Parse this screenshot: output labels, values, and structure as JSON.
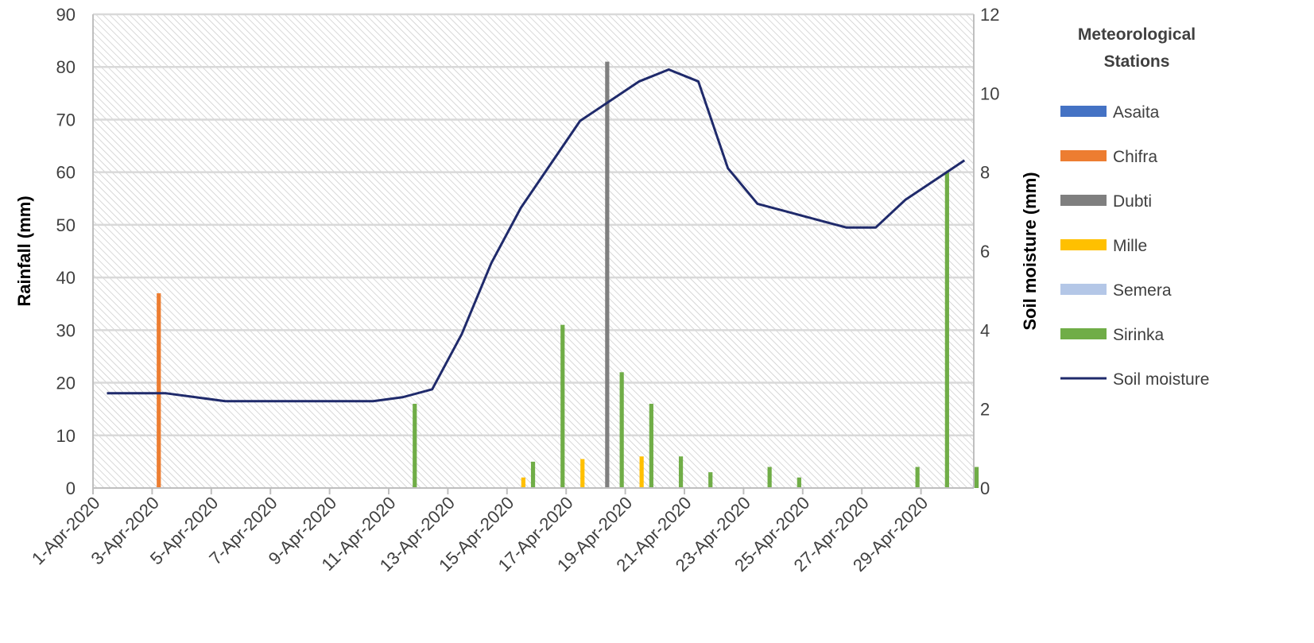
{
  "chart_data": {
    "type": "bar",
    "x_dates": [
      "1-Apr-2020",
      "2-Apr-2020",
      "3-Apr-2020",
      "4-Apr-2020",
      "5-Apr-2020",
      "6-Apr-2020",
      "7-Apr-2020",
      "8-Apr-2020",
      "9-Apr-2020",
      "10-Apr-2020",
      "11-Apr-2020",
      "12-Apr-2020",
      "13-Apr-2020",
      "14-Apr-2020",
      "15-Apr-2020",
      "16-Apr-2020",
      "17-Apr-2020",
      "18-Apr-2020",
      "19-Apr-2020",
      "20-Apr-2020",
      "21-Apr-2020",
      "22-Apr-2020",
      "23-Apr-2020",
      "24-Apr-2020",
      "25-Apr-2020",
      "26-Apr-2020",
      "27-Apr-2020",
      "28-Apr-2020",
      "29-Apr-2020",
      "30-Apr-2020"
    ],
    "x_tick_labels": [
      "1-Apr-2020",
      "3-Apr-2020",
      "5-Apr-2020",
      "7-Apr-2020",
      "9-Apr-2020",
      "11-Apr-2020",
      "13-Apr-2020",
      "15-Apr-2020",
      "17-Apr-2020",
      "19-Apr-2020",
      "21-Apr-2020",
      "23-Apr-2020",
      "25-Apr-2020",
      "27-Apr-2020",
      "29-Apr-2020"
    ],
    "ylabel_left": "Rainfall (mm)",
    "ylabel_right": "Soil moisture (mm)",
    "ylim_left": [
      0,
      90
    ],
    "ylim_right": [
      0,
      12
    ],
    "yticks_left": [
      0,
      10,
      20,
      30,
      40,
      50,
      60,
      70,
      80,
      90
    ],
    "yticks_right": [
      0,
      2,
      4,
      6,
      8,
      10,
      12
    ],
    "grid": true,
    "legend_title": "Meteorological Stations",
    "legend_position": "right",
    "series": [
      {
        "name": "Asaita",
        "kind": "bar",
        "axis": "left",
        "color": "#4472C4",
        "values": [
          0,
          0,
          0,
          0,
          0,
          0,
          0,
          0,
          0,
          0,
          0,
          0,
          0,
          0,
          0,
          0,
          0,
          0,
          0,
          0,
          0,
          0,
          0,
          0,
          0,
          0,
          0,
          0,
          0,
          0
        ]
      },
      {
        "name": "Chifra",
        "kind": "bar",
        "axis": "left",
        "color": "#ED7D31",
        "values": [
          0,
          0,
          37,
          0,
          0,
          0,
          0,
          0,
          0,
          0,
          0,
          0,
          0,
          0,
          0,
          0,
          0,
          0,
          0,
          0,
          0,
          0,
          0,
          0,
          0,
          0,
          0,
          0,
          0,
          0
        ]
      },
      {
        "name": "Dubti",
        "kind": "bar",
        "axis": "left",
        "color": "#7F7F7F",
        "values": [
          0,
          0,
          0,
          0,
          0,
          0,
          0,
          0,
          0,
          0,
          0,
          0,
          0,
          0,
          0,
          0,
          0,
          81,
          0,
          0,
          0,
          0,
          0,
          0,
          0,
          0,
          0,
          0,
          0,
          0
        ]
      },
      {
        "name": "Mille",
        "kind": "bar",
        "axis": "left",
        "color": "#FFC000",
        "values": [
          0,
          0,
          0,
          0,
          0,
          0,
          0,
          0,
          0,
          0,
          0,
          0,
          0,
          0,
          2,
          0,
          5.5,
          0,
          6,
          0,
          0,
          0,
          0,
          0,
          0,
          0,
          0,
          0,
          0,
          0
        ]
      },
      {
        "name": "Semera",
        "kind": "bar",
        "axis": "left",
        "color": "#B4C7E7",
        "values": [
          0,
          0,
          0,
          0,
          0,
          0,
          0,
          0,
          0,
          0,
          0,
          0,
          0,
          0,
          0,
          0,
          0,
          0,
          0,
          0,
          0,
          0,
          0,
          0,
          0,
          0,
          0,
          0,
          0,
          0
        ]
      },
      {
        "name": "Sirinka",
        "kind": "bar",
        "axis": "left",
        "color": "#70AD47",
        "values": [
          0,
          0,
          0,
          0,
          0,
          0,
          0,
          0,
          0,
          0,
          16,
          0,
          0,
          0,
          5,
          31,
          0,
          22,
          16,
          6,
          3,
          0,
          4,
          2,
          0,
          0,
          0,
          4,
          60,
          4
        ]
      },
      {
        "name": "Soil moisture",
        "kind": "line",
        "axis": "right",
        "color": "#1F2A6B",
        "values": [
          2.4,
          2.4,
          2.4,
          2.3,
          2.2,
          2.2,
          2.2,
          2.2,
          2.2,
          2.2,
          2.3,
          2.5,
          3.9,
          5.7,
          7.1,
          8.2,
          9.3,
          9.8,
          10.3,
          10.6,
          10.3,
          8.1,
          7.2,
          7.0,
          6.8,
          6.6,
          6.6,
          7.3,
          7.8,
          8.3
        ]
      }
    ]
  }
}
